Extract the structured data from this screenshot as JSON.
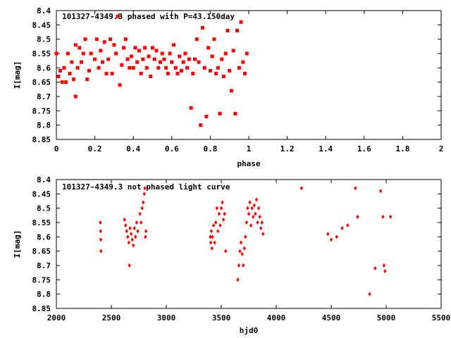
{
  "colors": {
    "points": "#ff0000",
    "axes": "#000000",
    "background": "#ffffff"
  },
  "chart_data": [
    {
      "type": "scatter",
      "title": "101327-4349.3 phased with P=43.150day",
      "xlabel": "phase",
      "ylabel": "I[mag]",
      "xlim": [
        0,
        2
      ],
      "ylim": [
        8.85,
        8.4
      ],
      "y_reversed": true,
      "x_ticks": [
        "0",
        "0.2",
        "0.4",
        "0.6",
        "0.8",
        "1",
        "1.2",
        "1.4",
        "1.6",
        "1.8",
        "2"
      ],
      "y_ticks": [
        "8.4",
        "8.45",
        "8.5",
        "8.55",
        "8.6",
        "8.65",
        "8.7",
        "8.75",
        "8.8",
        "8.85"
      ],
      "grid": false,
      "marker": "filled-square",
      "series": [
        {
          "points": [
            [
              0.0,
              8.55
            ],
            [
              0.01,
              8.63
            ],
            [
              0.02,
              8.61
            ],
            [
              0.03,
              8.65
            ],
            [
              0.04,
              8.6
            ],
            [
              0.05,
              8.65
            ],
            [
              0.06,
              8.55
            ],
            [
              0.07,
              8.62
            ],
            [
              0.08,
              8.58
            ],
            [
              0.09,
              8.64
            ],
            [
              0.1,
              8.52
            ],
            [
              0.1,
              8.7
            ],
            [
              0.11,
              8.6
            ],
            [
              0.12,
              8.53
            ],
            [
              0.13,
              8.58
            ],
            [
              0.14,
              8.55
            ],
            [
              0.15,
              8.5
            ],
            [
              0.16,
              8.64
            ],
            [
              0.17,
              8.61
            ],
            [
              0.18,
              8.55
            ],
            [
              0.2,
              8.57
            ],
            [
              0.21,
              8.5
            ],
            [
              0.22,
              8.6
            ],
            [
              0.23,
              8.54
            ],
            [
              0.24,
              8.58
            ],
            [
              0.25,
              8.51
            ],
            [
              0.26,
              8.62
            ],
            [
              0.27,
              8.57
            ],
            [
              0.28,
              8.5
            ],
            [
              0.29,
              8.62
            ],
            [
              0.3,
              8.52
            ],
            [
              0.31,
              8.55
            ],
            [
              0.32,
              8.42
            ],
            [
              0.33,
              8.66
            ],
            [
              0.34,
              8.59
            ],
            [
              0.35,
              8.53
            ],
            [
              0.36,
              8.5
            ],
            [
              0.37,
              8.57
            ],
            [
              0.38,
              8.6
            ],
            [
              0.39,
              8.56
            ],
            [
              0.4,
              8.6
            ],
            [
              0.41,
              8.53
            ],
            [
              0.42,
              8.58
            ],
            [
              0.43,
              8.54
            ],
            [
              0.44,
              8.62
            ],
            [
              0.45,
              8.57
            ],
            [
              0.46,
              8.53
            ],
            [
              0.47,
              8.6
            ],
            [
              0.48,
              8.56
            ],
            [
              0.49,
              8.63
            ],
            [
              0.5,
              8.53
            ],
            [
              0.51,
              8.57
            ],
            [
              0.52,
              8.54
            ],
            [
              0.53,
              8.6
            ],
            [
              0.54,
              8.58
            ],
            [
              0.55,
              8.55
            ],
            [
              0.56,
              8.57
            ],
            [
              0.57,
              8.6
            ],
            [
              0.58,
              8.62
            ],
            [
              0.59,
              8.55
            ],
            [
              0.6,
              8.58
            ],
            [
              0.61,
              8.52
            ],
            [
              0.62,
              8.6
            ],
            [
              0.63,
              8.62
            ],
            [
              0.64,
              8.56
            ],
            [
              0.65,
              8.61
            ],
            [
              0.66,
              8.58
            ],
            [
              0.67,
              8.55
            ],
            [
              0.68,
              8.6
            ],
            [
              0.69,
              8.57
            ],
            [
              0.7,
              8.74
            ],
            [
              0.71,
              8.62
            ],
            [
              0.72,
              8.57
            ],
            [
              0.73,
              8.5
            ],
            [
              0.74,
              8.58
            ],
            [
              0.75,
              8.8
            ],
            [
              0.76,
              8.46
            ],
            [
              0.77,
              8.6
            ],
            [
              0.78,
              8.77
            ],
            [
              0.79,
              8.53
            ],
            [
              0.8,
              8.61
            ],
            [
              0.81,
              8.56
            ],
            [
              0.82,
              8.5
            ],
            [
              0.83,
              8.62
            ],
            [
              0.84,
              8.6
            ],
            [
              0.85,
              8.76
            ],
            [
              0.86,
              8.57
            ],
            [
              0.87,
              8.63
            ],
            [
              0.88,
              8.55
            ],
            [
              0.89,
              8.47
            ],
            [
              0.9,
              8.61
            ],
            [
              0.91,
              8.68
            ],
            [
              0.92,
              8.54
            ],
            [
              0.93,
              8.76
            ],
            [
              0.94,
              8.47
            ],
            [
              0.95,
              8.6
            ],
            [
              0.96,
              8.44
            ],
            [
              0.97,
              8.58
            ],
            [
              0.98,
              8.62
            ],
            [
              0.99,
              8.55
            ]
          ]
        }
      ]
    },
    {
      "type": "scatter",
      "title": "101327-4349.3 not phased light curve",
      "xlabel": "hjd0",
      "ylabel": "I[mag]",
      "xlim": [
        2000,
        5500
      ],
      "ylim": [
        8.85,
        8.4
      ],
      "y_reversed": true,
      "x_ticks": [
        "2000",
        "2500",
        "3000",
        "3500",
        "4000",
        "4500",
        "5000",
        "5500"
      ],
      "y_ticks": [
        "8.4",
        "8.45",
        "8.5",
        "8.55",
        "8.6",
        "8.65",
        "8.7",
        "8.75",
        "8.8",
        "8.85"
      ],
      "grid": false,
      "marker": "filled-diamond",
      "series": [
        {
          "points": [
            [
              2400,
              8.55
            ],
            [
              2402,
              8.58
            ],
            [
              2404,
              8.61
            ],
            [
              2406,
              8.65
            ],
            [
              2620,
              8.54
            ],
            [
              2630,
              8.56
            ],
            [
              2640,
              8.58
            ],
            [
              2650,
              8.6
            ],
            [
              2660,
              8.62
            ],
            [
              2665,
              8.7
            ],
            [
              2670,
              8.57
            ],
            [
              2680,
              8.59
            ],
            [
              2690,
              8.61
            ],
            [
              2700,
              8.63
            ],
            [
              2710,
              8.57
            ],
            [
              2720,
              8.6
            ],
            [
              2730,
              8.55
            ],
            [
              2740,
              8.58
            ],
            [
              2760,
              8.52
            ],
            [
              2770,
              8.55
            ],
            [
              2780,
              8.5
            ],
            [
              2790,
              8.48
            ],
            [
              2800,
              8.45
            ],
            [
              2805,
              8.43
            ],
            [
              2810,
              8.6
            ],
            [
              2815,
              8.58
            ],
            [
              3400,
              8.6
            ],
            [
              3405,
              8.62
            ],
            [
              3410,
              8.58
            ],
            [
              3415,
              8.64
            ],
            [
              3420,
              8.6
            ],
            [
              3430,
              8.56
            ],
            [
              3440,
              8.62
            ],
            [
              3450,
              8.55
            ],
            [
              3460,
              8.5
            ],
            [
              3470,
              8.58
            ],
            [
              3480,
              8.52
            ],
            [
              3490,
              8.56
            ],
            [
              3500,
              8.5
            ],
            [
              3510,
              8.48
            ],
            [
              3520,
              8.54
            ],
            [
              3530,
              8.52
            ],
            [
              3540,
              8.65
            ],
            [
              3650,
              8.75
            ],
            [
              3660,
              8.7
            ],
            [
              3670,
              8.65
            ],
            [
              3680,
              8.62
            ],
            [
              3690,
              8.66
            ],
            [
              3700,
              8.7
            ],
            [
              3710,
              8.64
            ],
            [
              3720,
              8.6
            ],
            [
              3730,
              8.55
            ],
            [
              3740,
              8.5
            ],
            [
              3750,
              8.52
            ],
            [
              3760,
              8.48
            ],
            [
              3770,
              8.56
            ],
            [
              3780,
              8.5
            ],
            [
              3790,
              8.53
            ],
            [
              3800,
              8.49
            ],
            [
              3810,
              8.52
            ],
            [
              3820,
              8.47
            ],
            [
              3830,
              8.55
            ],
            [
              3840,
              8.5
            ],
            [
              3850,
              8.53
            ],
            [
              3860,
              8.57
            ],
            [
              3870,
              8.55
            ],
            [
              3880,
              8.59
            ],
            [
              4230,
              8.43
            ],
            [
              4470,
              8.59
            ],
            [
              4500,
              8.61
            ],
            [
              4550,
              8.6
            ],
            [
              4600,
              8.57
            ],
            [
              4650,
              8.56
            ],
            [
              4720,
              8.43
            ],
            [
              4740,
              8.53
            ],
            [
              4850,
              8.8
            ],
            [
              4900,
              8.71
            ],
            [
              4950,
              8.44
            ],
            [
              4970,
              8.53
            ],
            [
              4980,
              8.7
            ],
            [
              4990,
              8.72
            ],
            [
              5040,
              8.53
            ]
          ]
        }
      ]
    }
  ]
}
